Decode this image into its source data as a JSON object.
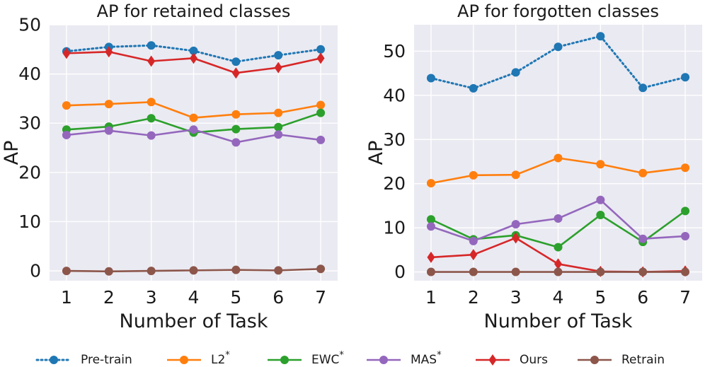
{
  "legend": [
    {
      "name": "Pre-train",
      "sup": "",
      "color": "#1f77b4",
      "style": "dotted",
      "marker": "circle"
    },
    {
      "name": "L2",
      "sup": "*",
      "color": "#ff7f0e",
      "style": "solid",
      "marker": "circle"
    },
    {
      "name": "EWC",
      "sup": "*",
      "color": "#2ca02c",
      "style": "solid",
      "marker": "circle"
    },
    {
      "name": "MAS",
      "sup": "*",
      "color": "#9467bd",
      "style": "solid",
      "marker": "circle"
    },
    {
      "name": "Ours",
      "sup": "",
      "color": "#d62728",
      "style": "solid",
      "marker": "diamond"
    },
    {
      "name": "Retrain",
      "sup": "",
      "color": "#8c564b",
      "style": "solid",
      "marker": "circle"
    }
  ],
  "chart_data": [
    {
      "type": "line",
      "title": "AP for retained classes",
      "xlabel": "Number of Task",
      "ylabel": "AP",
      "x": [
        1,
        2,
        3,
        4,
        5,
        6,
        7
      ],
      "xlim": [
        0.6,
        7.4
      ],
      "ylim": [
        -2,
        50
      ],
      "yticks": [
        0,
        10,
        20,
        30,
        40,
        50
      ],
      "grid": true,
      "series": [
        {
          "name": "Pre-train",
          "values": [
            44.6,
            45.5,
            45.8,
            44.7,
            42.5,
            43.8,
            45.0
          ]
        },
        {
          "name": "L2",
          "values": [
            33.6,
            33.9,
            34.3,
            31.1,
            31.8,
            32.1,
            33.7
          ]
        },
        {
          "name": "EWC",
          "values": [
            28.7,
            29.3,
            31.0,
            28.1,
            28.8,
            29.2,
            32.1
          ]
        },
        {
          "name": "MAS",
          "values": [
            27.6,
            28.5,
            27.5,
            28.7,
            26.1,
            27.7,
            26.6
          ]
        },
        {
          "name": "Ours",
          "values": [
            44.2,
            44.5,
            42.6,
            43.2,
            40.2,
            41.3,
            43.2
          ]
        },
        {
          "name": "Retrain",
          "values": [
            0.0,
            -0.1,
            0.0,
            0.1,
            0.2,
            0.1,
            0.4
          ]
        }
      ]
    },
    {
      "type": "line",
      "title": "AP for forgotten classes",
      "xlabel": "Number of Task",
      "ylabel": "AP",
      "x": [
        1,
        2,
        3,
        4,
        5,
        6,
        7
      ],
      "xlim": [
        0.6,
        7.4
      ],
      "ylim": [
        -2,
        56
      ],
      "yticks": [
        0,
        10,
        20,
        30,
        40,
        50
      ],
      "grid": true,
      "series": [
        {
          "name": "Pre-train",
          "values": [
            43.9,
            41.6,
            45.2,
            51.0,
            53.4,
            41.7,
            44.1
          ]
        },
        {
          "name": "L2",
          "values": [
            20.1,
            21.9,
            22.0,
            25.8,
            24.4,
            22.4,
            23.6
          ]
        },
        {
          "name": "EWC",
          "values": [
            11.9,
            7.4,
            8.3,
            5.6,
            12.9,
            6.8,
            13.8
          ]
        },
        {
          "name": "MAS",
          "values": [
            10.3,
            7.0,
            10.8,
            12.1,
            16.3,
            7.5,
            8.1
          ]
        },
        {
          "name": "Ours",
          "values": [
            3.3,
            3.9,
            7.7,
            1.8,
            0.1,
            0.0,
            0.2
          ]
        },
        {
          "name": "Retrain",
          "values": [
            0.0,
            0.0,
            0.0,
            0.0,
            0.0,
            0.0,
            0.0
          ]
        }
      ]
    }
  ]
}
